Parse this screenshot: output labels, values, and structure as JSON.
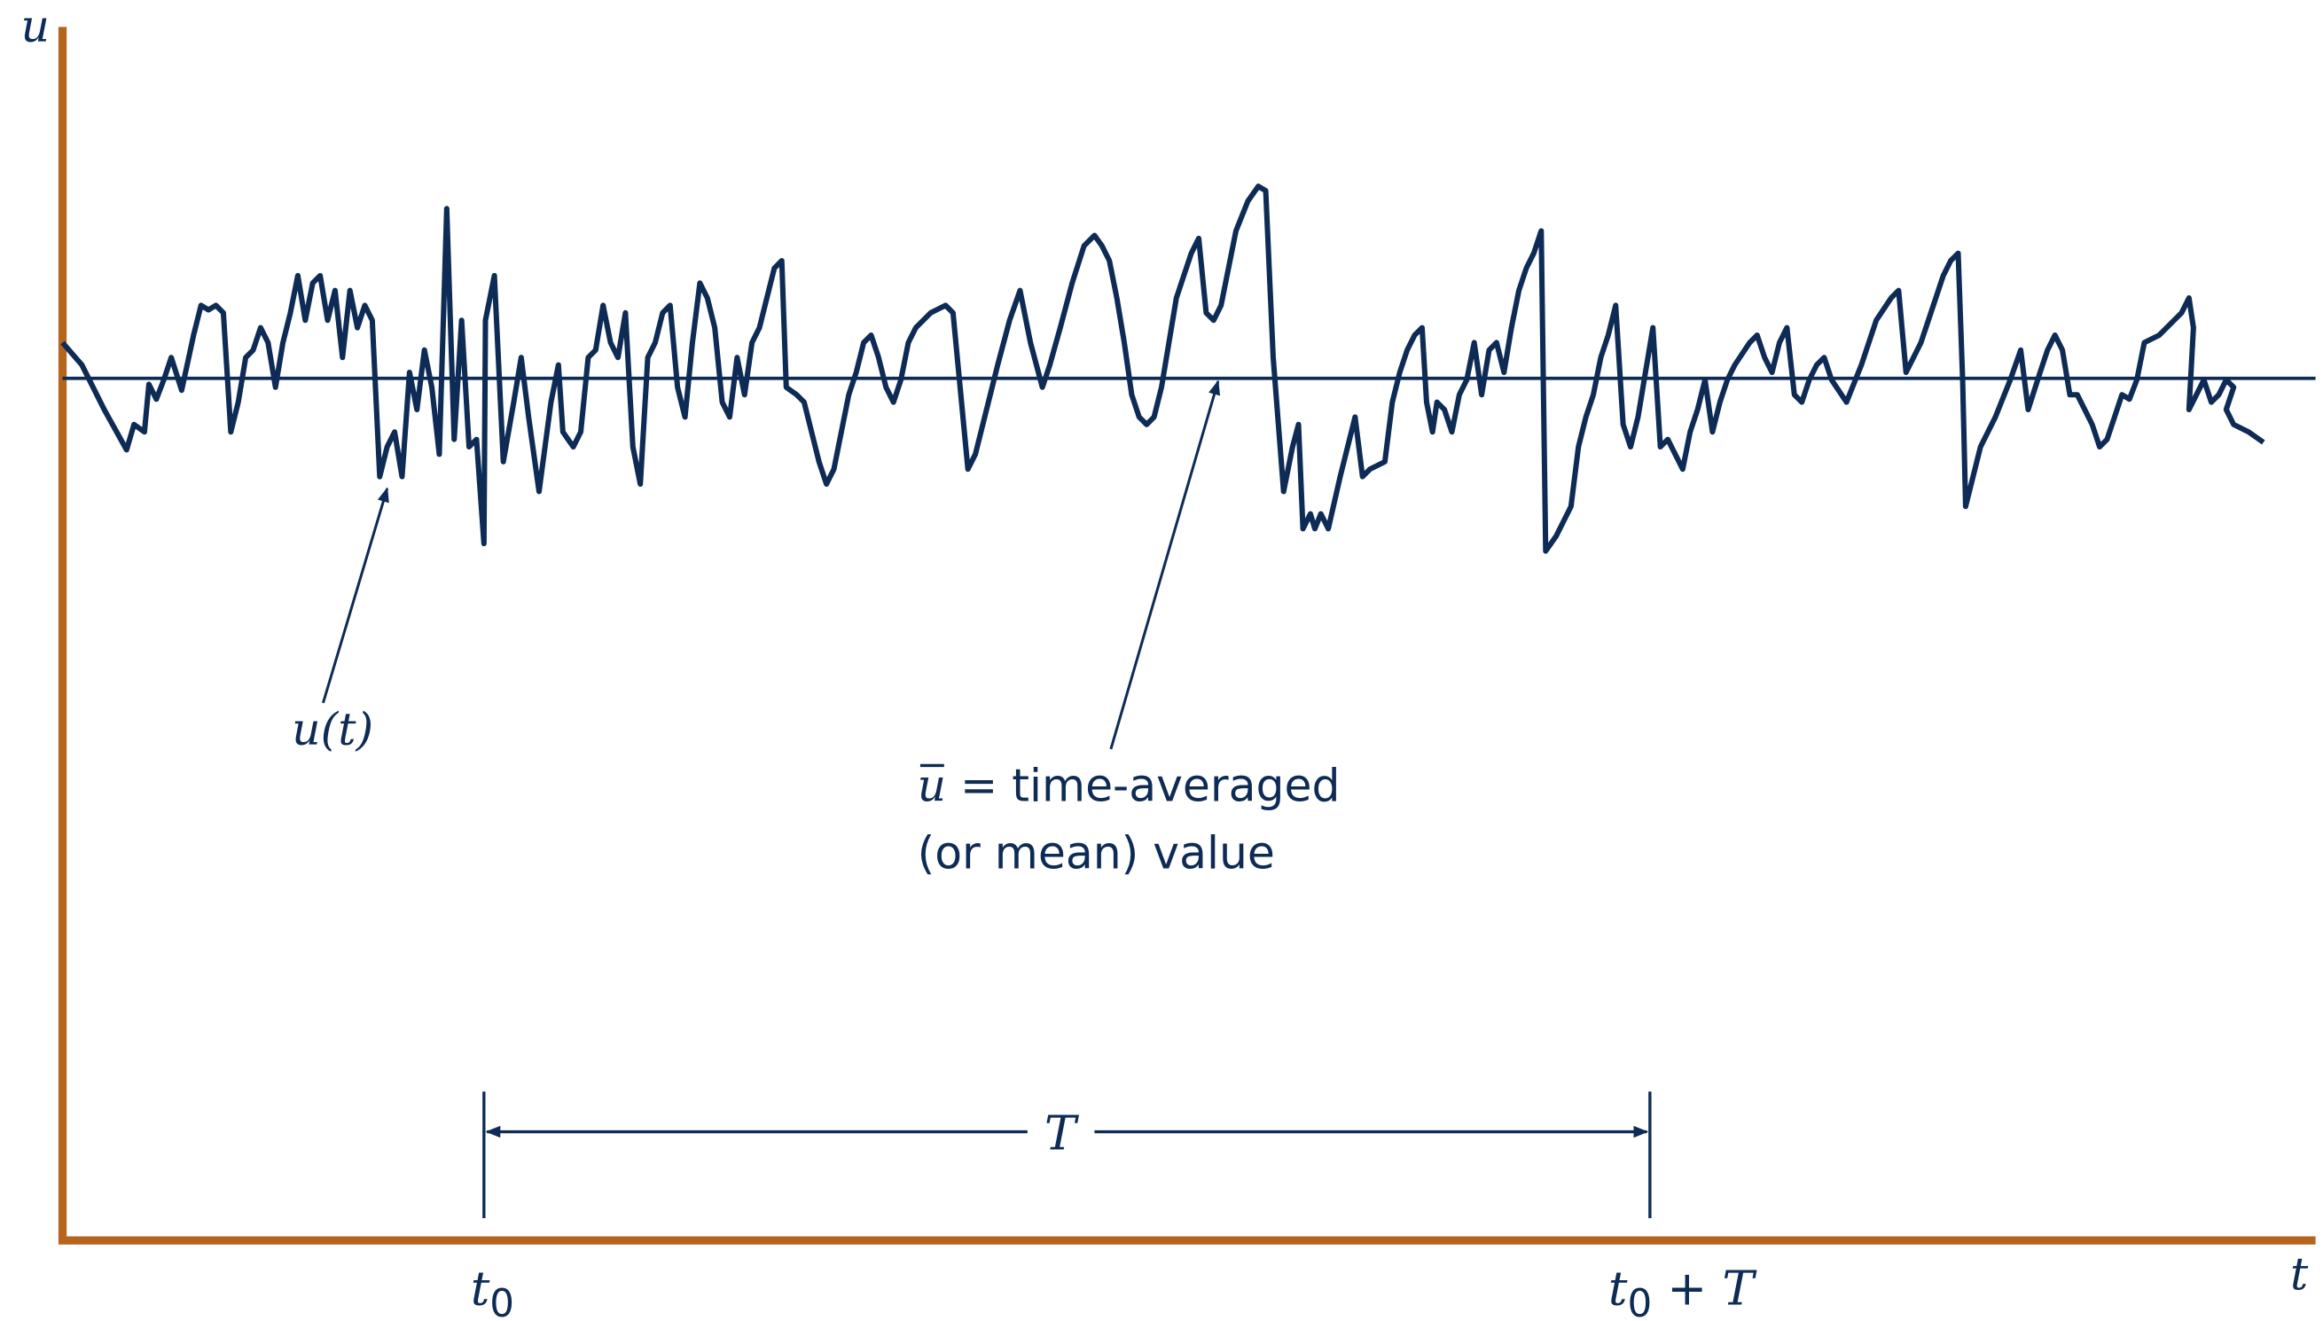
{
  "labels": {
    "y_axis": "u",
    "x_axis": "t",
    "t0_var": "t",
    "t0_sub": "0",
    "t0T_var": "t",
    "t0T_sub": "0",
    "t0T_plus": " + ",
    "t0T_T": "T",
    "interval": "T",
    "signal_var": "u",
    "signal_paren": "(t)",
    "mean_symbol": "u",
    "mean_line1": " = time-averaged",
    "mean_line2": "(or mean) value"
  },
  "colors": {
    "axis": "#b5651d",
    "ink": "#0d2b55"
  }
}
